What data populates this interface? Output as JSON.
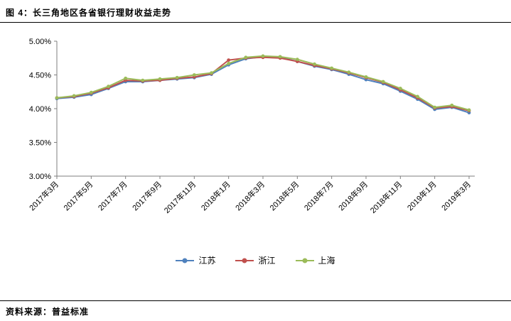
{
  "header": {
    "title": "图 4：长三角地区各省银行理财收益走势"
  },
  "footer": {
    "source": "资料来源：普益标准"
  },
  "chart_data": {
    "type": "line",
    "title": "长三角地区各省银行理财收益走势",
    "x": [
      "2017年3月",
      "2017年4月",
      "2017年5月",
      "2017年6月",
      "2017年7月",
      "2017年8月",
      "2017年9月",
      "2017年10月",
      "2017年11月",
      "2017年12月",
      "2018年1月",
      "2018年2月",
      "2018年3月",
      "2018年4月",
      "2018年5月",
      "2018年6月",
      "2018年7月",
      "2018年8月",
      "2018年9月",
      "2018年10月",
      "2018年11月",
      "2018年12月",
      "2019年1月",
      "2019年2月",
      "2019年3月"
    ],
    "x_label_every": 2,
    "ylim": [
      3.0,
      5.0
    ],
    "ytick_values": [
      3.0,
      3.5,
      4.0,
      4.5,
      5.0
    ],
    "ytick_labels": [
      "3.00%",
      "3.50%",
      "4.00%",
      "4.50%",
      "5.00%"
    ],
    "grid": false,
    "legend_position": "bottom",
    "axis_color": "#7f7f7f",
    "series": [
      {
        "name": "江苏",
        "color": "#4F81BD",
        "values": [
          4.15,
          4.17,
          4.21,
          4.3,
          4.4,
          4.4,
          4.42,
          4.44,
          4.46,
          4.51,
          4.65,
          4.74,
          4.77,
          4.76,
          4.7,
          4.63,
          4.58,
          4.51,
          4.43,
          4.37,
          4.26,
          4.14,
          3.99,
          4.02,
          3.94
        ]
      },
      {
        "name": "浙江",
        "color": "#C0504D",
        "values": [
          4.16,
          4.18,
          4.23,
          4.31,
          4.42,
          4.41,
          4.42,
          4.45,
          4.47,
          4.52,
          4.72,
          4.75,
          4.76,
          4.75,
          4.7,
          4.64,
          4.59,
          4.53,
          4.46,
          4.39,
          4.28,
          4.16,
          4.01,
          4.03,
          3.97
        ]
      },
      {
        "name": "上海",
        "color": "#9BBB59",
        "values": [
          4.16,
          4.19,
          4.24,
          4.33,
          4.45,
          4.42,
          4.44,
          4.46,
          4.5,
          4.53,
          4.67,
          4.76,
          4.78,
          4.77,
          4.73,
          4.66,
          4.6,
          4.54,
          4.47,
          4.4,
          4.3,
          4.18,
          4.02,
          4.05,
          3.98
        ]
      }
    ]
  }
}
